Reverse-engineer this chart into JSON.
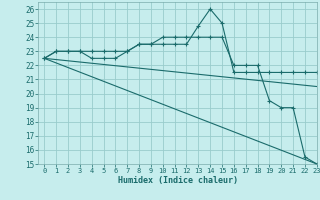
{
  "title": "",
  "xlabel": "Humidex (Indice chaleur)",
  "ylabel": "",
  "xlim": [
    -0.5,
    23
  ],
  "ylim": [
    15,
    26.5
  ],
  "yticks": [
    15,
    16,
    17,
    18,
    19,
    20,
    21,
    22,
    23,
    24,
    25,
    26
  ],
  "xticks": [
    0,
    1,
    2,
    3,
    4,
    5,
    6,
    7,
    8,
    9,
    10,
    11,
    12,
    13,
    14,
    15,
    16,
    17,
    18,
    19,
    20,
    21,
    22,
    23
  ],
  "background_color": "#c6eded",
  "grid_color": "#99cccc",
  "line_color": "#1a6b6b",
  "lines": [
    {
      "x": [
        0,
        1,
        2,
        3,
        4,
        5,
        6,
        7,
        8,
        9,
        10,
        11,
        12,
        13,
        14,
        15,
        16,
        17,
        18,
        19,
        20,
        21,
        22,
        23
      ],
      "y": [
        22.5,
        23.0,
        23.0,
        23.0,
        23.0,
        23.0,
        23.0,
        23.0,
        23.5,
        23.5,
        23.5,
        23.5,
        23.5,
        24.8,
        26.0,
        25.0,
        21.5,
        21.5,
        21.5,
        21.5,
        21.5,
        21.5,
        21.5,
        21.5
      ],
      "marker": true
    },
    {
      "x": [
        0,
        1,
        2,
        3,
        4,
        5,
        6,
        7,
        8,
        9,
        10,
        11,
        12,
        13,
        14,
        15,
        16,
        17,
        18,
        19,
        20,
        21,
        22,
        23
      ],
      "y": [
        22.5,
        23.0,
        23.0,
        23.0,
        22.5,
        22.5,
        22.5,
        23.0,
        23.5,
        23.5,
        24.0,
        24.0,
        24.0,
        24.0,
        24.0,
        24.0,
        22.0,
        22.0,
        22.0,
        19.5,
        19.0,
        19.0,
        15.5,
        15.0
      ],
      "marker": true
    },
    {
      "x": [
        0,
        23
      ],
      "y": [
        22.5,
        20.5
      ],
      "marker": false
    },
    {
      "x": [
        0,
        23
      ],
      "y": [
        22.5,
        15.0
      ],
      "marker": false
    }
  ]
}
